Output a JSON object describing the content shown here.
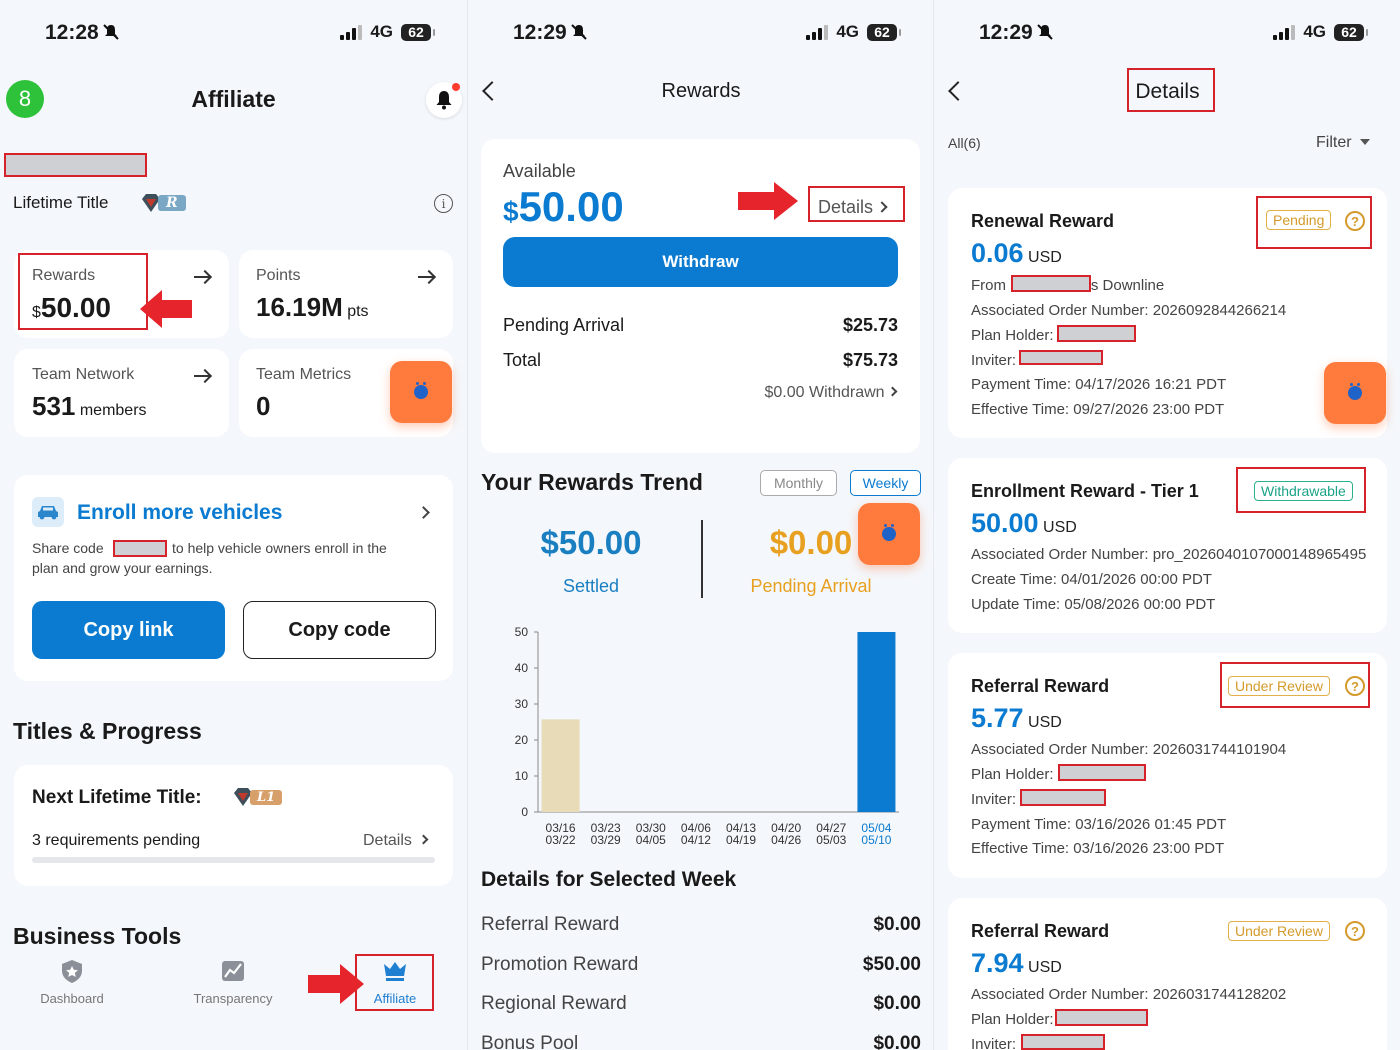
{
  "status": [
    {
      "time": "12:28",
      "network": "4G",
      "battery": "62"
    },
    {
      "time": "12:29",
      "network": "4G",
      "battery": "62"
    },
    {
      "time": "12:29",
      "network": "4G",
      "battery": "62"
    }
  ],
  "affiliate": {
    "avatar_letter": "8",
    "title": "Affiliate",
    "lifetime_title_label": "Lifetime Title",
    "lifetime_badge": "R",
    "rewards": {
      "label": "Rewards",
      "currency": "$",
      "amount": "50.00"
    },
    "points": {
      "label": "Points",
      "amount": "16.19M",
      "unit": "pts"
    },
    "team_network": {
      "label": "Team Network",
      "amount": "531",
      "unit": "members"
    },
    "team_metrics": {
      "label": "Team Metrics",
      "amount": "0"
    },
    "enroll": {
      "title": "Enroll more vehicles",
      "share_prefix": "Share code",
      "share_suffix": "to help vehicle owners enroll in the",
      "share_line2": "plan and grow your earnings.",
      "copy_link": "Copy link",
      "copy_code": "Copy code"
    },
    "titles_heading": "Titles & Progress",
    "next_title_label": "Next Lifetime Title:",
    "next_badge": "L1",
    "requirements": "3 requirements pending",
    "details": "Details",
    "business_tools": "Business Tools",
    "nav": [
      {
        "label": "Dashboard",
        "icon": "shield-star-icon"
      },
      {
        "label": "Transparency",
        "icon": "chart-icon"
      },
      {
        "label": "Affiliate",
        "icon": "crown-icon"
      }
    ]
  },
  "rewards": {
    "title": "Rewards",
    "available_label": "Available",
    "currency": "$",
    "available_amount": "50.00",
    "details_link": "Details",
    "withdraw": "Withdraw",
    "pending_arrival_label": "Pending Arrival",
    "pending_arrival_value": "$25.73",
    "total_label": "Total",
    "total_value": "$75.73",
    "withdrawn": "$0.00 Withdrawn",
    "trend_title": "Your Rewards Trend",
    "toggle_monthly": "Monthly",
    "toggle_weekly": "Weekly",
    "settled_value": "$50.00",
    "settled_label": "Settled",
    "pending_value": "$0.00",
    "pending_label": "Pending Arrival",
    "details_week_title": "Details for Selected Week",
    "week_items": [
      {
        "label": "Referral Reward",
        "value": "$0.00"
      },
      {
        "label": "Promotion Reward",
        "value": "$50.00"
      },
      {
        "label": "Regional Reward",
        "value": "$0.00"
      },
      {
        "label": "Bonus Pool",
        "value": "$0.00"
      }
    ]
  },
  "chart_data": {
    "type": "bar",
    "categories": [
      "03/16\n03/22",
      "03/23\n03/29",
      "03/30\n04/05",
      "04/06\n04/12",
      "04/13\n04/19",
      "04/20\n04/26",
      "04/27\n05/03",
      "05/04\n05/10"
    ],
    "values": [
      25.73,
      0,
      0,
      0,
      0,
      0,
      0,
      50
    ],
    "bar_colors": [
      "#e8dcb8",
      "#0a7bd0",
      "#0a7bd0",
      "#0a7bd0",
      "#0a7bd0",
      "#0a7bd0",
      "#0a7bd0",
      "#0a7bd0"
    ],
    "yticks": [
      0,
      10,
      20,
      30,
      40,
      50
    ],
    "ylim": [
      0,
      50
    ],
    "title": "",
    "xlabel": "",
    "ylabel": "",
    "selected_index": 7
  },
  "details": {
    "title": "Details",
    "all_label": "All(6)",
    "filter_label": "Filter",
    "cards": [
      {
        "title": "Renewal Reward",
        "status": "Pending",
        "amount": "0.06",
        "currency": "USD",
        "lines": [
          {
            "text": "From",
            "suffix": "'s Downline",
            "redacted": true
          },
          {
            "text": "Associated Order Number: 2026092844266214"
          },
          {
            "text": "Plan Holder:",
            "redacted": true
          },
          {
            "text": "Inviter:",
            "redacted": true
          },
          {
            "text": "Payment Time: 04/17/2026 16:21 PDT"
          },
          {
            "text": "Effective Time: 09/27/2026 23:00 PDT"
          }
        ]
      },
      {
        "title": "Enrollment Reward - Tier 1",
        "status": "Withdrawable",
        "amount": "50.00",
        "currency": "USD",
        "lines": [
          {
            "text": "Associated Order Number: pro_20260401070001489654​95"
          },
          {
            "text": "Create Time: 04/01/2026 00:00 PDT"
          },
          {
            "text": "Update Time: 05/08/2026 00:00 PDT"
          }
        ]
      },
      {
        "title": "Referral Reward",
        "status": "Under Review",
        "amount": "5.77",
        "currency": "USD",
        "lines": [
          {
            "text": "Associated Order Number: 2026031744101904"
          },
          {
            "text": "Plan Holder:",
            "redacted": true
          },
          {
            "text": "Inviter:",
            "redacted": true
          },
          {
            "text": "Payment Time: 03/16/2026 01:45 PDT"
          },
          {
            "text": "Effective Time: 03/16/2026 23:00 PDT"
          }
        ]
      },
      {
        "title": "Referral Reward",
        "status": "Under Review",
        "amount": "7.94",
        "currency": "USD",
        "lines": [
          {
            "text": "Associated Order Number: 2026031744128202"
          },
          {
            "text": "Plan Holder:",
            "redacted": true
          },
          {
            "text": "Inviter:",
            "redacted": true
          }
        ]
      }
    ]
  }
}
